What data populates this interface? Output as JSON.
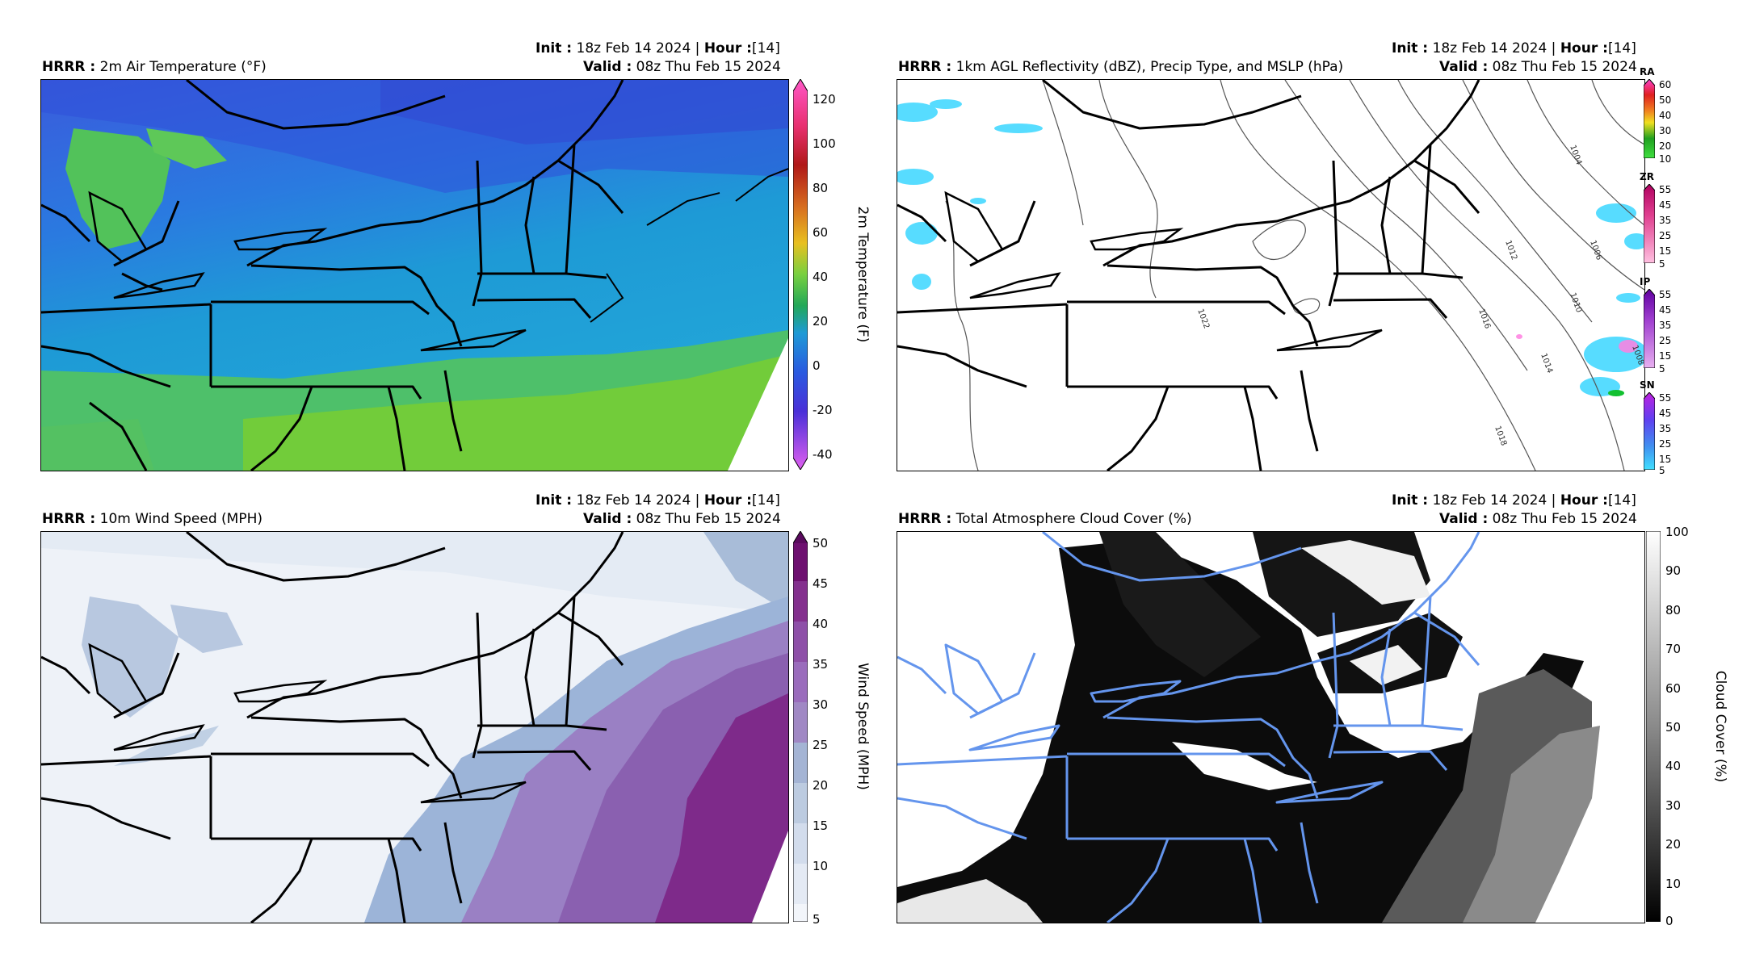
{
  "panels": [
    {
      "model": "HRRR",
      "title": "2m Air Temperature (°F)",
      "init_label": "Init",
      "init_value": "18z Feb 14 2024",
      "hour_label": "Hour",
      "hour_value": "[14]",
      "valid_label": "Valid",
      "valid_value": "08z Thu Feb 15 2024",
      "colorbar_label": "2m Temperature (F)",
      "colorbar_ticks": [
        "120",
        "100",
        "80",
        "60",
        "40",
        "20",
        "0",
        "-20",
        "-40"
      ]
    },
    {
      "model": "HRRR",
      "title": "1km AGL Reflectivity (dBZ), Precip Type, and MSLP (hPa)",
      "init_label": "Init",
      "init_value": "18z Feb 14 2024",
      "hour_label": "Hour",
      "hour_value": "[14]",
      "valid_label": "Valid",
      "valid_value": "08z Thu Feb 15 2024",
      "isobar_labels": [
        "1022",
        "1016",
        "1014",
        "1018",
        "1012",
        "1010",
        "1006",
        "1004",
        "1008"
      ],
      "precip_bars": [
        {
          "name": "RA",
          "ticks": [
            "60",
            "50",
            "40",
            "30",
            "20",
            "10"
          ]
        },
        {
          "name": "ZR",
          "ticks": [
            "55",
            "45",
            "35",
            "25",
            "15",
            "5"
          ]
        },
        {
          "name": "IP",
          "ticks": [
            "55",
            "45",
            "35",
            "25",
            "15",
            "5"
          ]
        },
        {
          "name": "SN",
          "ticks": [
            "55",
            "45",
            "35",
            "25",
            "15",
            "5"
          ]
        }
      ]
    },
    {
      "model": "HRRR",
      "title": "10m Wind Speed (MPH)",
      "init_label": "Init",
      "init_value": "18z Feb 14 2024",
      "hour_label": "Hour",
      "hour_value": "[14]",
      "valid_label": "Valid",
      "valid_value": "08z Thu Feb 15 2024",
      "colorbar_label": "Wind Speed (MPH)",
      "colorbar_ticks": [
        "50",
        "45",
        "40",
        "35",
        "30",
        "25",
        "20",
        "15",
        "10",
        "5"
      ]
    },
    {
      "model": "HRRR",
      "title": "Total Atmosphere Cloud Cover (%)",
      "init_label": "Init",
      "init_value": "18z Feb 14 2024",
      "hour_label": "Hour",
      "hour_value": "[14]",
      "valid_label": "Valid",
      "valid_value": "08z Thu Feb 15 2024",
      "colorbar_label": "Cloud Cover (%)",
      "colorbar_ticks": [
        "100",
        "90",
        "80",
        "70",
        "60",
        "50",
        "40",
        "30",
        "20",
        "10",
        "0"
      ]
    }
  ],
  "colors": {
    "temp_cold": "#2c6fe0",
    "temp_mid": "#1c9ad6",
    "temp_warm": "#7fd13a",
    "wind_low": "#eef2f8",
    "wind_high": "#7a1a7a",
    "boundary_blue": "#6495ed"
  }
}
